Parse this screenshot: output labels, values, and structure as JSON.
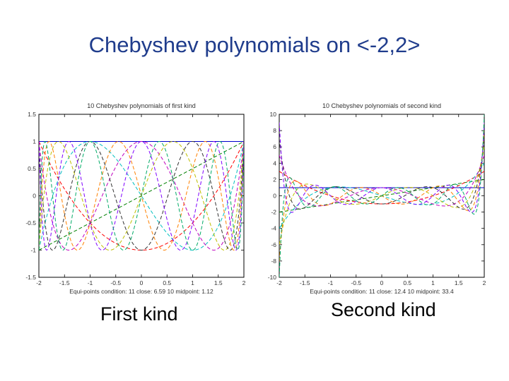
{
  "slide": {
    "title": "Chebyshev polynomials on <-2,2>",
    "caption_left": "First kind",
    "caption_right": "Second kind"
  },
  "chart_data": [
    {
      "type": "line",
      "title": "10 Chebyshev polynomials of first kind",
      "xlabel": "Equi-points condition: 11 close: 6.59 10 midpoint: 1.12",
      "ylabel": "",
      "xlim": [
        -2,
        2
      ],
      "ylim": [
        -1.5,
        1.5
      ],
      "x_ticks": [
        "-2",
        "-1.5",
        "-1",
        "-0.5",
        "0",
        "0.5",
        "1",
        "1.5",
        "2"
      ],
      "y_ticks": [
        "1.5",
        "1",
        "0.5",
        "0",
        "-0.5",
        "-1",
        "-1.5"
      ],
      "grid": false,
      "kind": "first",
      "degrees": [
        0,
        1,
        2,
        3,
        4,
        5,
        6,
        7,
        8,
        9
      ],
      "colors": [
        "#0000cc",
        "#008000",
        "#ff0000",
        "#00bfbf",
        "#bf00bf",
        "#bfbf00",
        "#333333",
        "#ff8000",
        "#7f00ff",
        "#00aa66"
      ]
    },
    {
      "type": "line",
      "title": "10 Chebyshev polynomials of second kind",
      "xlabel": "Equi-points condition: 11 close: 12.4 10 midpoint: 33.4",
      "ylabel": "",
      "xlim": [
        -2,
        2
      ],
      "ylim": [
        -10,
        10
      ],
      "x_ticks": [
        "-2",
        "-1.5",
        "-1",
        "-0.5",
        "0",
        "0.5",
        "1",
        "1.5",
        "2"
      ],
      "y_ticks": [
        "10",
        "8",
        "6",
        "4",
        "2",
        "0",
        "-2",
        "-4",
        "-6",
        "-8",
        "-10"
      ],
      "grid": false,
      "kind": "second",
      "degrees": [
        0,
        1,
        2,
        3,
        4,
        5,
        6,
        7,
        8,
        9
      ],
      "colors": [
        "#0000cc",
        "#008000",
        "#ff0000",
        "#00bfbf",
        "#bf00bf",
        "#bfbf00",
        "#333333",
        "#ff8000",
        "#7f00ff",
        "#00aa66"
      ]
    }
  ]
}
